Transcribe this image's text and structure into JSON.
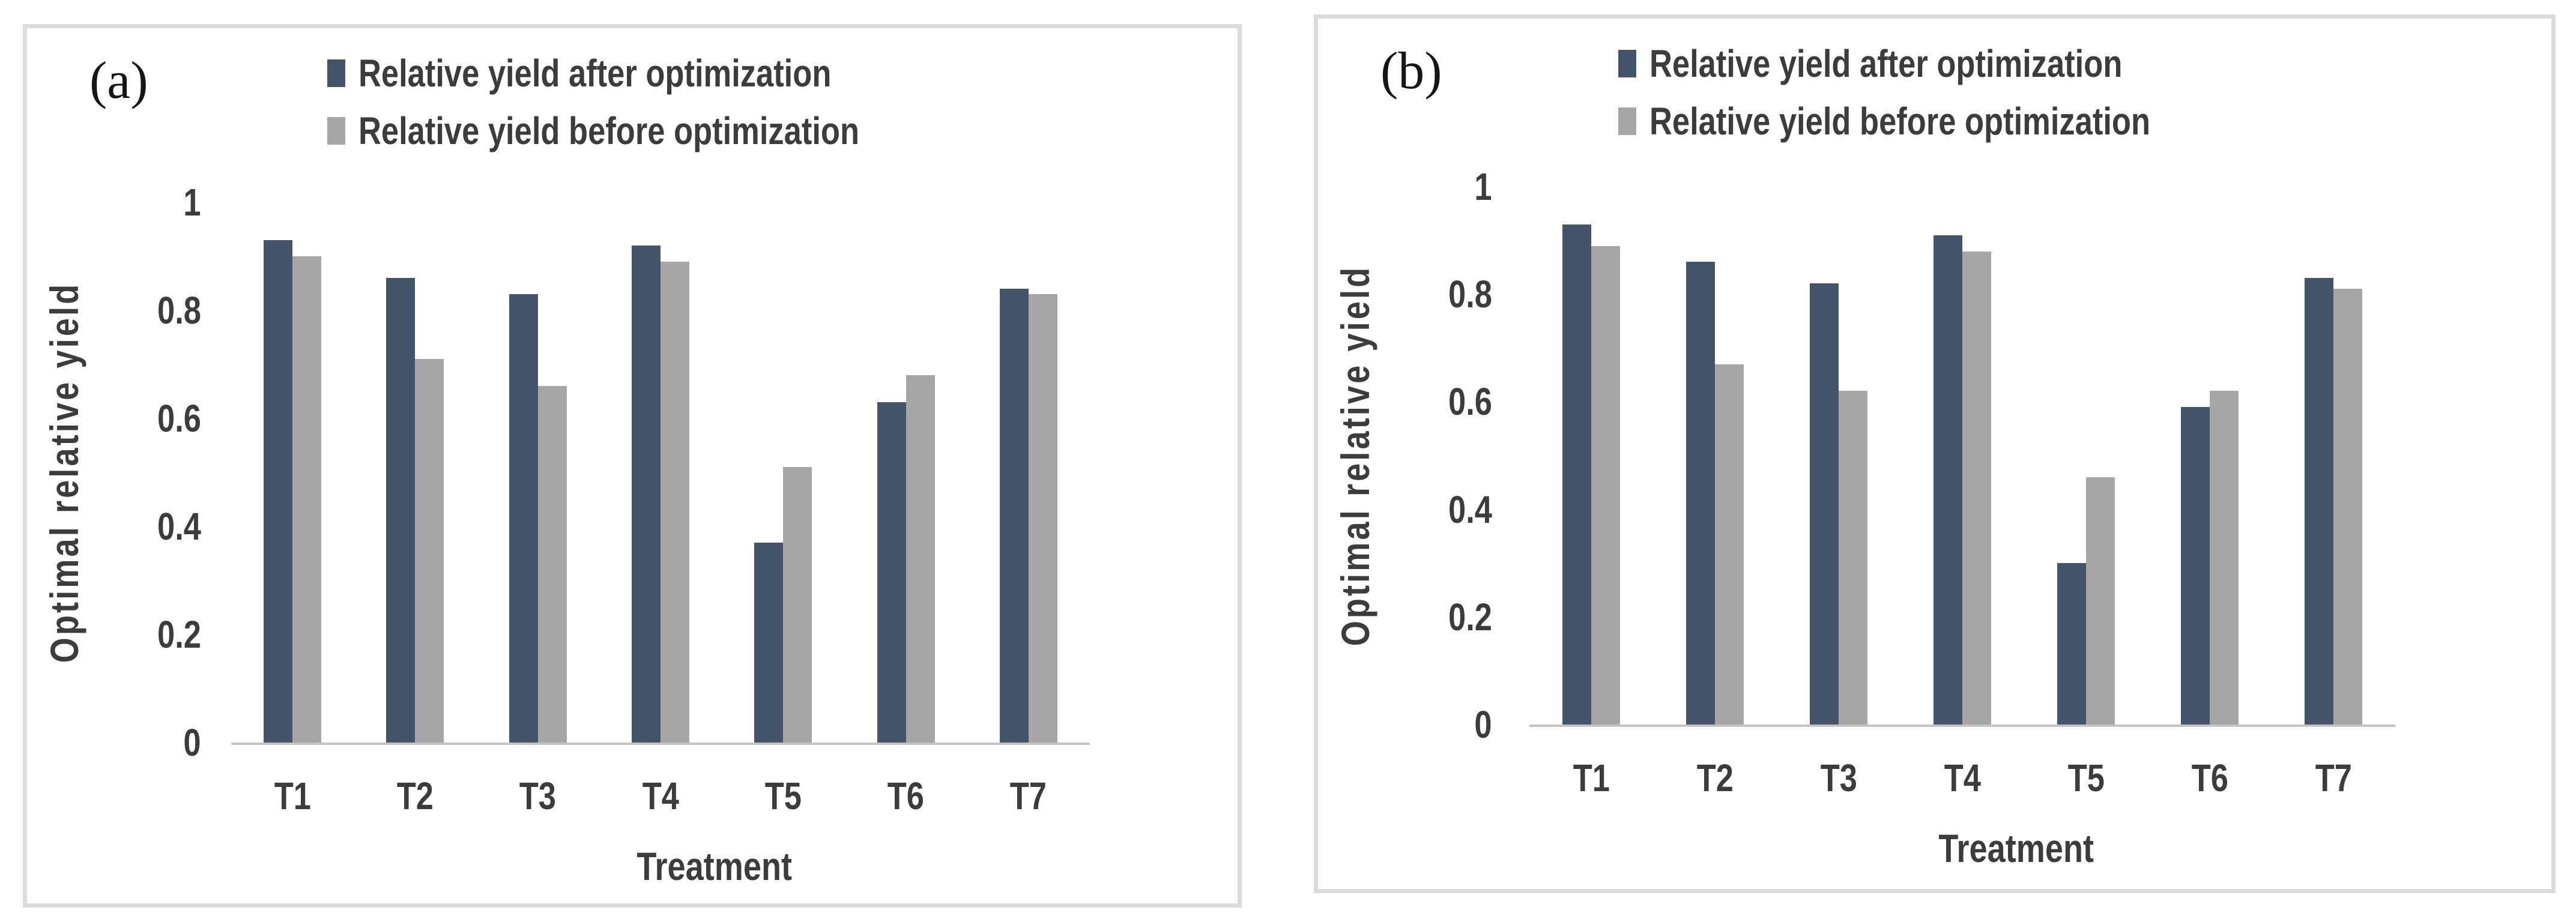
{
  "figure": {
    "background": "#ffffff",
    "panel_border_color": "#dbdbdb",
    "axis_line_color": "#c4c4c4",
    "text_color": "#3c3c3c"
  },
  "chart_data": [
    {
      "type": "bar",
      "panel_label": "(a)",
      "categories": [
        "T1",
        "T2",
        "T3",
        "T4",
        "T5",
        "T6",
        "T7"
      ],
      "series": [
        {
          "name": "Relative yield after optimization",
          "color": "#44546A",
          "values": [
            0.93,
            0.86,
            0.83,
            0.92,
            0.37,
            0.63,
            0.84
          ]
        },
        {
          "name": "Relative yield before optimization",
          "color": "#A6A6A6",
          "values": [
            0.9,
            0.71,
            0.66,
            0.89,
            0.51,
            0.68,
            0.83
          ]
        }
      ],
      "xlabel": "Treatment",
      "ylabel": "Optimal relative yield",
      "ylim": [
        0,
        1
      ],
      "y_ticks": [
        "1",
        "0.8",
        "0.6",
        "0.4",
        "0.2",
        "0"
      ],
      "grid": false,
      "legend_position": "top"
    },
    {
      "type": "bar",
      "panel_label": "(b)",
      "categories": [
        "T1",
        "T2",
        "T3",
        "T4",
        "T5",
        "T6",
        "T7"
      ],
      "series": [
        {
          "name": "Relative yield after optimization",
          "color": "#44546A",
          "values": [
            0.93,
            0.86,
            0.82,
            0.91,
            0.3,
            0.59,
            0.83
          ]
        },
        {
          "name": "Relative yield before optimization",
          "color": "#A6A6A6",
          "values": [
            0.89,
            0.67,
            0.62,
            0.88,
            0.46,
            0.62,
            0.81
          ]
        }
      ],
      "xlabel": "Treatment",
      "ylabel": "Optimal relative yield",
      "ylim": [
        0,
        1
      ],
      "y_ticks": [
        "1",
        "0.8",
        "0.6",
        "0.4",
        "0.2",
        "0"
      ],
      "grid": false,
      "legend_position": "top"
    }
  ]
}
